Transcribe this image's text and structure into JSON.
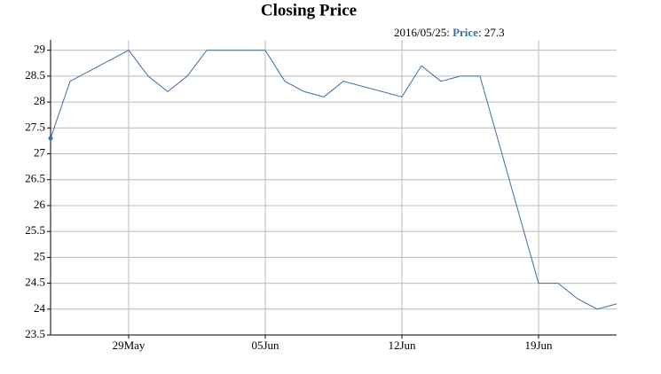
{
  "chart_data": {
    "type": "line",
    "title": "Closing Price",
    "x": [
      "2016-05-25",
      "2016-05-26",
      "2016-05-29",
      "2016-05-30",
      "2016-05-31",
      "2016-06-01",
      "2016-06-02",
      "2016-06-05",
      "2016-06-06",
      "2016-06-07",
      "2016-06-08",
      "2016-06-09",
      "2016-06-12",
      "2016-06-13",
      "2016-06-14",
      "2016-06-15",
      "2016-06-16",
      "2016-06-19",
      "2016-06-20",
      "2016-06-21",
      "2016-06-22",
      "2016-06-23"
    ],
    "series": [
      {
        "name": "Price",
        "color": "#3a6ea5",
        "values": [
          27.3,
          28.4,
          29,
          28.5,
          28.2,
          28.5,
          29,
          29,
          28.4,
          28.2,
          28.1,
          28.4,
          28.1,
          28.7,
          28.4,
          28.5,
          28.5,
          24.5,
          24.5,
          24.2,
          24.0,
          24.1
        ]
      }
    ],
    "legend": {
      "date_label": "2016/05/25:",
      "separator": ":"
    },
    "xlim": [
      "2016-05-25",
      "2016-06-23"
    ],
    "xticks": [
      {
        "value": "2016-05-29",
        "label": "29May"
      },
      {
        "value": "2016-06-05",
        "label": "05Jun"
      },
      {
        "value": "2016-06-12",
        "label": "12Jun"
      },
      {
        "value": "2016-06-19",
        "label": "19Jun"
      }
    ],
    "ylim": [
      23.5,
      29.2
    ],
    "yticks": [
      23.5,
      24,
      24.5,
      25,
      25.5,
      26,
      26.5,
      27,
      27.5,
      28,
      28.5,
      29
    ],
    "grid": true
  }
}
